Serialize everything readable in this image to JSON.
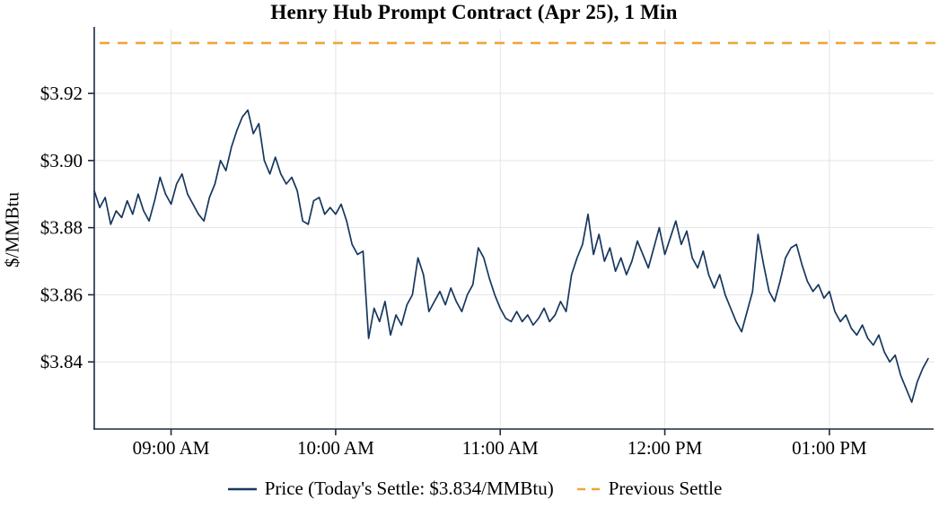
{
  "chart": {
    "title": "Henry Hub Prompt Contract (Apr 25), 1 Min",
    "ylabel": "$/MMBtu"
  },
  "legend": {
    "price": "Price (Today's Settle: $3.834/MMBtu)",
    "previous_settle": "Previous Settle"
  },
  "colors": {
    "price_line": "#17375E",
    "previous_settle_line": "#F0A43C",
    "grid": "#E4E4E4",
    "axis": "#1B2A41",
    "text": "#000000"
  },
  "chart_data": {
    "type": "line",
    "title": "Henry Hub Prompt Contract (Apr 25), 1 Min",
    "xlabel": "",
    "ylabel": "$/MMBtu",
    "grid": true,
    "legend_position": "bottom",
    "todays_settle": 3.834,
    "previous_settle": {
      "value": 3.935,
      "style": "dashed",
      "label": "Previous Settle"
    },
    "x_axis": {
      "unit": "minutes-since-midnight",
      "start_time": "08:32 AM",
      "end_time": "01:38 PM",
      "domain_minutes": [
        512,
        818
      ],
      "tick_minutes": [
        540,
        600,
        660,
        720,
        780
      ],
      "tick_labels": [
        "09:00 AM",
        "10:00 AM",
        "11:00 AM",
        "12:00 PM",
        "01:00 PM"
      ]
    },
    "y_axis": {
      "tick_values": [
        3.84,
        3.86,
        3.88,
        3.9,
        3.92
      ],
      "tick_labels": [
        "$3.84",
        "$3.86",
        "$3.88",
        "$3.90",
        "$3.92"
      ],
      "ylim": [
        3.82,
        3.939
      ]
    },
    "series": [
      {
        "name": "Price (Today's Settle: $3.834/MMBtu)",
        "interval": "1 Min (sampled ~2 min)",
        "x_start_minutes": 512,
        "x_step_minutes": 2,
        "values": [
          3.891,
          3.886,
          3.889,
          3.881,
          3.885,
          3.883,
          3.888,
          3.884,
          3.89,
          3.885,
          3.882,
          3.888,
          3.895,
          3.89,
          3.887,
          3.893,
          3.896,
          3.89,
          3.887,
          3.884,
          3.882,
          3.889,
          3.893,
          3.9,
          3.897,
          3.904,
          3.909,
          3.913,
          3.915,
          3.908,
          3.911,
          3.9,
          3.896,
          3.901,
          3.896,
          3.893,
          3.895,
          3.891,
          3.882,
          3.881,
          3.888,
          3.889,
          3.884,
          3.886,
          3.884,
          3.887,
          3.882,
          3.875,
          3.872,
          3.873,
          3.847,
          3.856,
          3.852,
          3.858,
          3.848,
          3.854,
          3.851,
          3.857,
          3.86,
          3.871,
          3.866,
          3.855,
          3.858,
          3.861,
          3.857,
          3.862,
          3.858,
          3.855,
          3.86,
          3.863,
          3.874,
          3.871,
          3.865,
          3.86,
          3.856,
          3.853,
          3.852,
          3.855,
          3.852,
          3.854,
          3.851,
          3.853,
          3.856,
          3.852,
          3.854,
          3.858,
          3.855,
          3.866,
          3.871,
          3.875,
          3.884,
          3.872,
          3.878,
          3.87,
          3.874,
          3.867,
          3.871,
          3.866,
          3.87,
          3.876,
          3.872,
          3.868,
          3.874,
          3.88,
          3.872,
          3.877,
          3.882,
          3.875,
          3.879,
          3.871,
          3.868,
          3.873,
          3.866,
          3.862,
          3.866,
          3.86,
          3.856,
          3.852,
          3.849,
          3.855,
          3.861,
          3.878,
          3.869,
          3.861,
          3.858,
          3.864,
          3.871,
          3.874,
          3.875,
          3.869,
          3.864,
          3.861,
          3.863,
          3.859,
          3.861,
          3.855,
          3.852,
          3.854,
          3.85,
          3.848,
          3.851,
          3.847,
          3.845,
          3.848,
          3.843,
          3.84,
          3.842,
          3.836,
          3.832,
          3.828,
          3.834,
          3.838,
          3.841
        ]
      }
    ]
  }
}
